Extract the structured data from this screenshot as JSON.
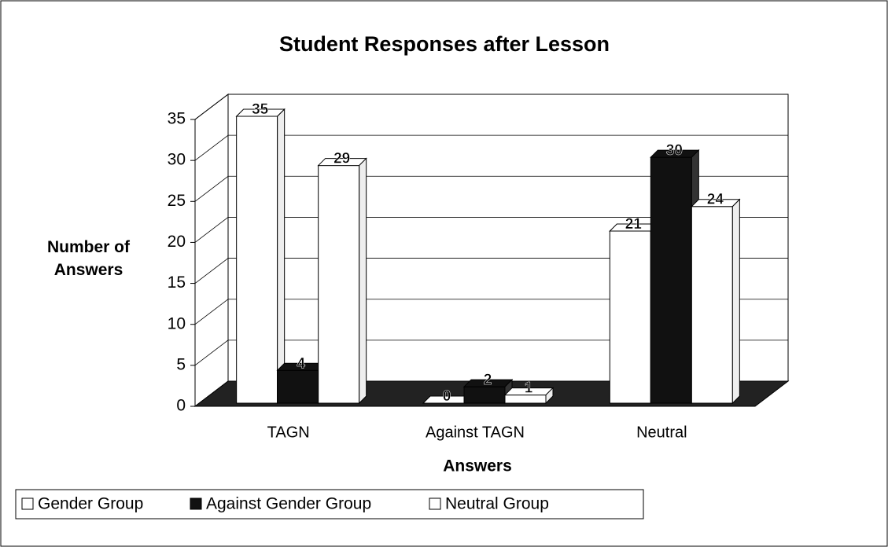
{
  "chart_data": {
    "type": "bar",
    "title": "Student Responses after Lesson",
    "x_label": "Answers",
    "y_label": "Number of Answers",
    "categories": [
      "TAGN",
      "Against TAGN",
      "Neutral"
    ],
    "series": [
      {
        "name": "Gender Group",
        "color": "#ffffff",
        "values": [
          35,
          0,
          21
        ]
      },
      {
        "name": "Against Gender Group",
        "color": "#111111",
        "values": [
          4,
          2,
          30
        ]
      },
      {
        "name": "Neutral Group",
        "color": "#ffffff",
        "values": [
          29,
          1,
          24
        ]
      }
    ],
    "ylim": [
      0,
      35
    ],
    "yticks": [
      0,
      5,
      10,
      15,
      20,
      25,
      30,
      35
    ],
    "grid": true,
    "legend": "bottom"
  }
}
